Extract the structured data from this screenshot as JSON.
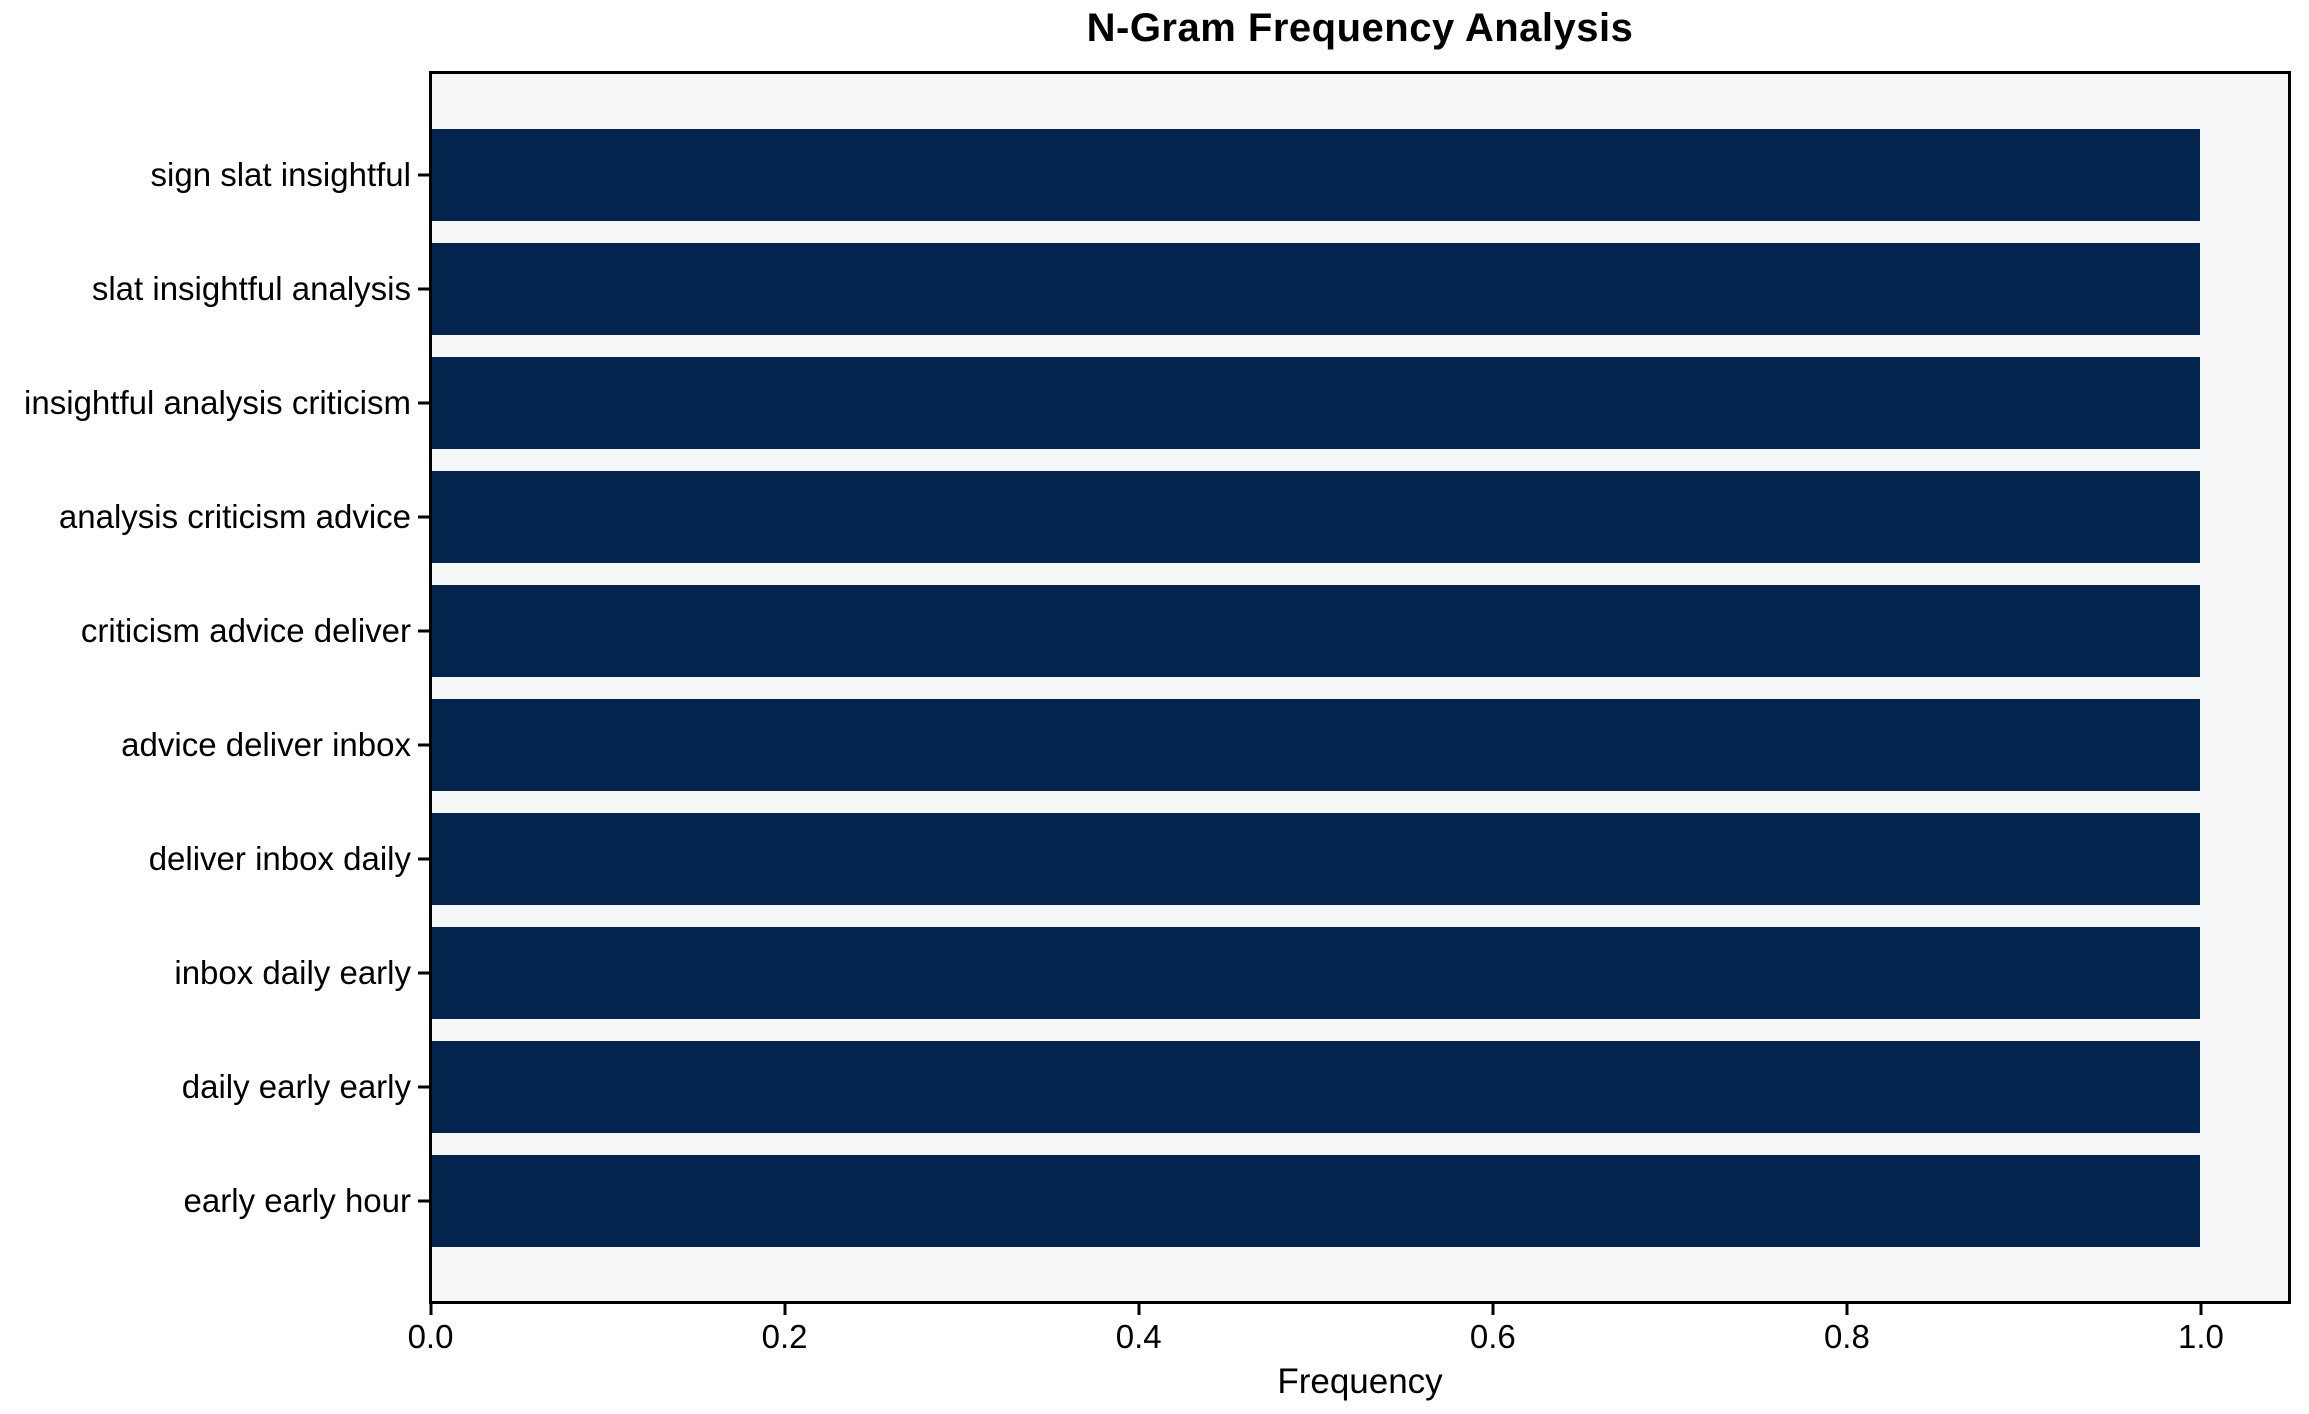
{
  "chart_data": {
    "type": "bar",
    "orientation": "horizontal",
    "title": "N-Gram Frequency Analysis",
    "xlabel": "Frequency",
    "ylabel": "",
    "categories": [
      "sign slat insightful",
      "slat insightful analysis",
      "insightful analysis criticism",
      "analysis criticism advice",
      "criticism advice deliver",
      "advice deliver inbox",
      "deliver inbox daily",
      "inbox daily early",
      "daily early early",
      "early early hour"
    ],
    "values": [
      1.0,
      1.0,
      1.0,
      1.0,
      1.0,
      1.0,
      1.0,
      1.0,
      1.0,
      1.0
    ],
    "xlim": [
      0,
      1.05
    ],
    "xticks": [
      0.0,
      0.2,
      0.4,
      0.6,
      0.8,
      1.0
    ],
    "xtick_labels": [
      "0.0",
      "0.2",
      "0.4",
      "0.6",
      "0.8",
      "1.0"
    ],
    "grid": false,
    "legend": "none",
    "bar_height_fraction": 0.8,
    "bar_color": "#03254e",
    "plot_background": "#f5f6f7",
    "figure_background": "#ffffff",
    "spine_color": "#000000"
  }
}
